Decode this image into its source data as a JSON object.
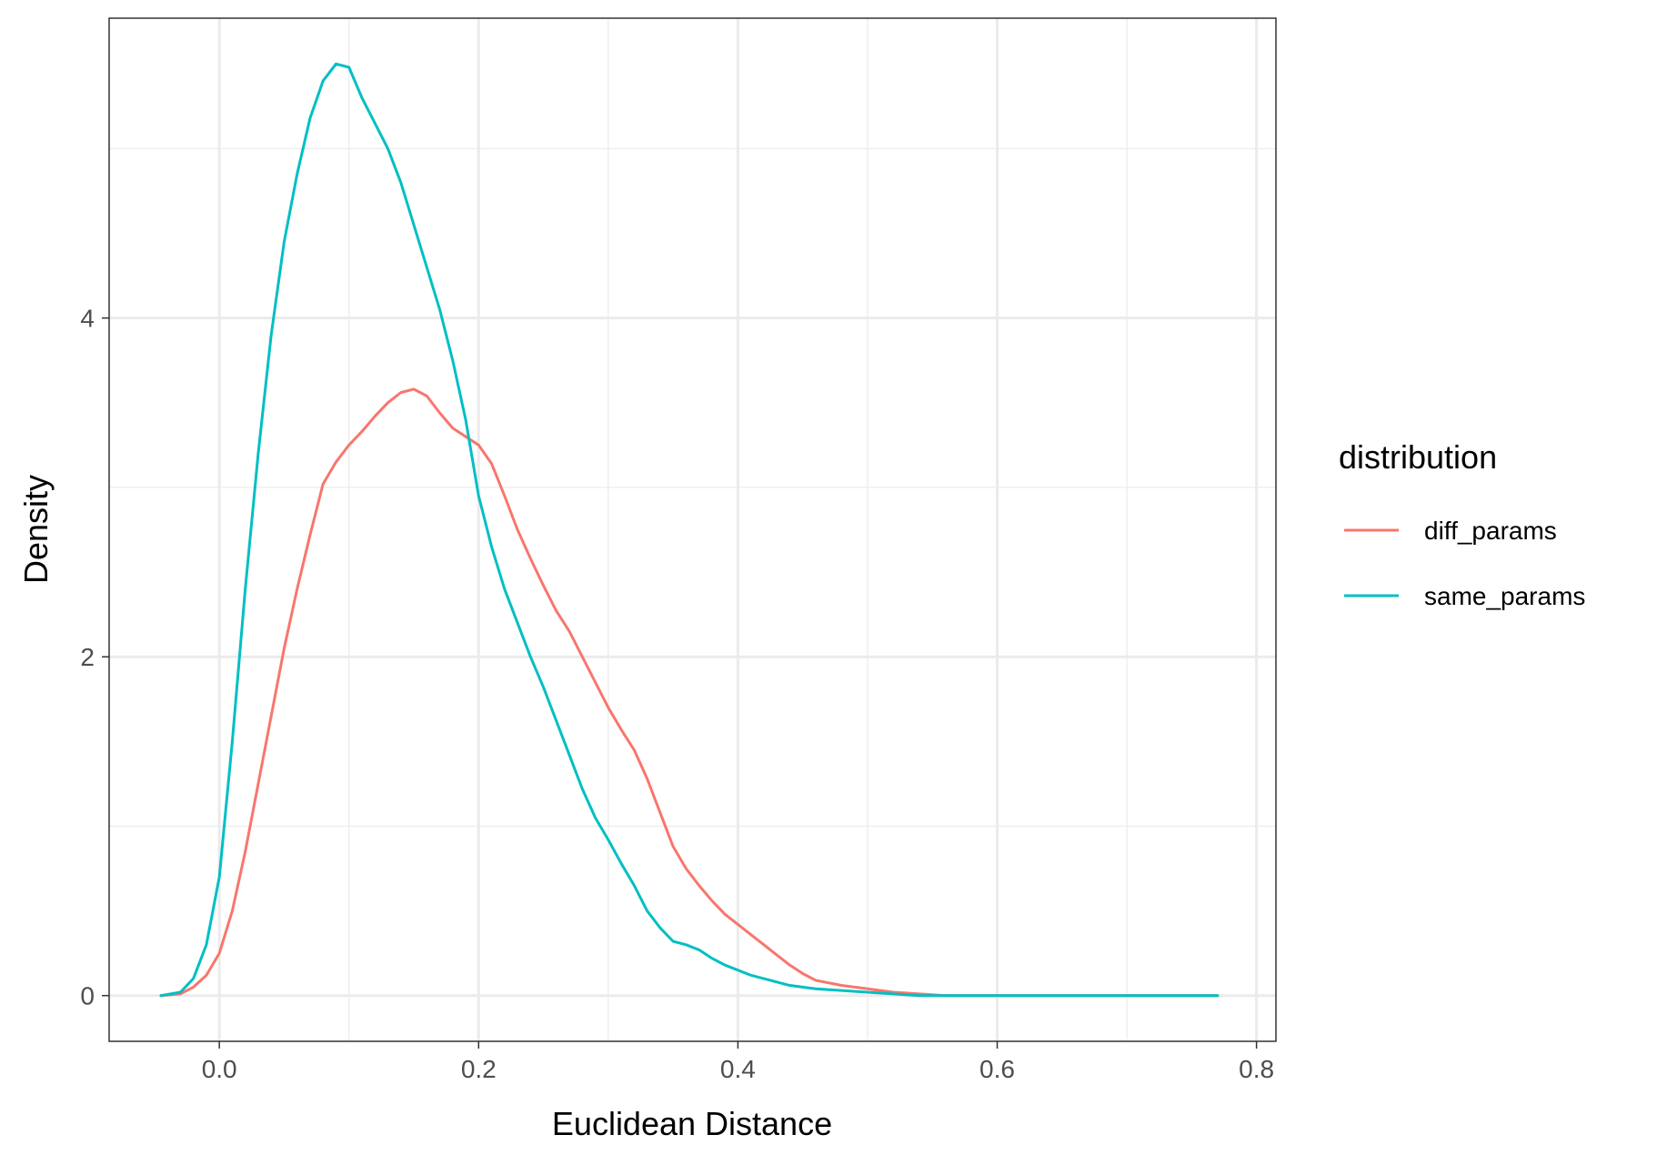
{
  "chart_data": {
    "type": "line",
    "xlabel": "Euclidean Distance",
    "ylabel": "Density",
    "xlim": [
      -0.085,
      0.815
    ],
    "ylim": [
      -0.27,
      5.77
    ],
    "x_ticks": [
      0.0,
      0.2,
      0.4,
      0.6,
      0.8
    ],
    "x_tick_labels": [
      "0.0",
      "0.2",
      "0.4",
      "0.6",
      "0.8"
    ],
    "x_minor_ticks": [
      0.1,
      0.3,
      0.5,
      0.7
    ],
    "y_ticks": [
      0,
      2,
      4
    ],
    "y_tick_labels": [
      "0",
      "2",
      "4"
    ],
    "y_minor_ticks": [
      1,
      3,
      5
    ],
    "grid": true,
    "legend": {
      "title": "distribution",
      "position": "right",
      "entries": [
        "diff_params",
        "same_params"
      ]
    },
    "series": [
      {
        "name": "diff_params",
        "color": "#F8766D",
        "x": [
          -0.045,
          -0.03,
          -0.02,
          -0.01,
          0.0,
          0.01,
          0.02,
          0.03,
          0.04,
          0.05,
          0.06,
          0.07,
          0.08,
          0.09,
          0.1,
          0.11,
          0.12,
          0.13,
          0.14,
          0.15,
          0.16,
          0.17,
          0.18,
          0.19,
          0.2,
          0.21,
          0.22,
          0.23,
          0.24,
          0.25,
          0.26,
          0.27,
          0.28,
          0.29,
          0.3,
          0.31,
          0.32,
          0.33,
          0.34,
          0.35,
          0.36,
          0.37,
          0.38,
          0.39,
          0.4,
          0.41,
          0.42,
          0.43,
          0.44,
          0.45,
          0.46,
          0.48,
          0.5,
          0.52,
          0.54,
          0.56,
          0.58,
          0.6,
          0.62,
          0.65,
          0.7,
          0.77
        ],
        "y": [
          0.0,
          0.01,
          0.05,
          0.12,
          0.25,
          0.5,
          0.85,
          1.25,
          1.65,
          2.05,
          2.4,
          2.72,
          3.02,
          3.15,
          3.25,
          3.33,
          3.42,
          3.5,
          3.56,
          3.58,
          3.54,
          3.44,
          3.35,
          3.3,
          3.25,
          3.14,
          2.95,
          2.75,
          2.58,
          2.42,
          2.27,
          2.15,
          2.0,
          1.85,
          1.7,
          1.57,
          1.45,
          1.28,
          1.08,
          0.88,
          0.75,
          0.65,
          0.56,
          0.48,
          0.42,
          0.36,
          0.3,
          0.24,
          0.18,
          0.13,
          0.09,
          0.06,
          0.04,
          0.02,
          0.01,
          0.0,
          0.0,
          0.0,
          0.0,
          0.0,
          0.0,
          0.0
        ]
      },
      {
        "name": "same_params",
        "color": "#00BFC4",
        "x": [
          -0.045,
          -0.03,
          -0.02,
          -0.01,
          0.0,
          0.01,
          0.02,
          0.03,
          0.04,
          0.05,
          0.06,
          0.07,
          0.08,
          0.09,
          0.1,
          0.11,
          0.12,
          0.13,
          0.14,
          0.15,
          0.16,
          0.17,
          0.18,
          0.19,
          0.2,
          0.21,
          0.22,
          0.23,
          0.24,
          0.25,
          0.26,
          0.27,
          0.28,
          0.29,
          0.3,
          0.31,
          0.32,
          0.33,
          0.34,
          0.35,
          0.36,
          0.37,
          0.38,
          0.39,
          0.4,
          0.41,
          0.42,
          0.43,
          0.44,
          0.45,
          0.46,
          0.48,
          0.5,
          0.52,
          0.54,
          0.56,
          0.58,
          0.6,
          0.62,
          0.65,
          0.7,
          0.77
        ],
        "y": [
          0.0,
          0.02,
          0.1,
          0.3,
          0.7,
          1.5,
          2.4,
          3.2,
          3.9,
          4.45,
          4.85,
          5.18,
          5.4,
          5.5,
          5.48,
          5.3,
          5.15,
          5.0,
          4.8,
          4.55,
          4.3,
          4.05,
          3.75,
          3.4,
          2.95,
          2.65,
          2.4,
          2.2,
          2.0,
          1.82,
          1.62,
          1.42,
          1.22,
          1.05,
          0.92,
          0.78,
          0.65,
          0.5,
          0.4,
          0.32,
          0.3,
          0.27,
          0.22,
          0.18,
          0.15,
          0.12,
          0.1,
          0.08,
          0.06,
          0.05,
          0.04,
          0.03,
          0.02,
          0.01,
          0.0,
          0.0,
          0.0,
          0.0,
          0.0,
          0.0,
          0.0,
          0.0
        ]
      }
    ]
  }
}
